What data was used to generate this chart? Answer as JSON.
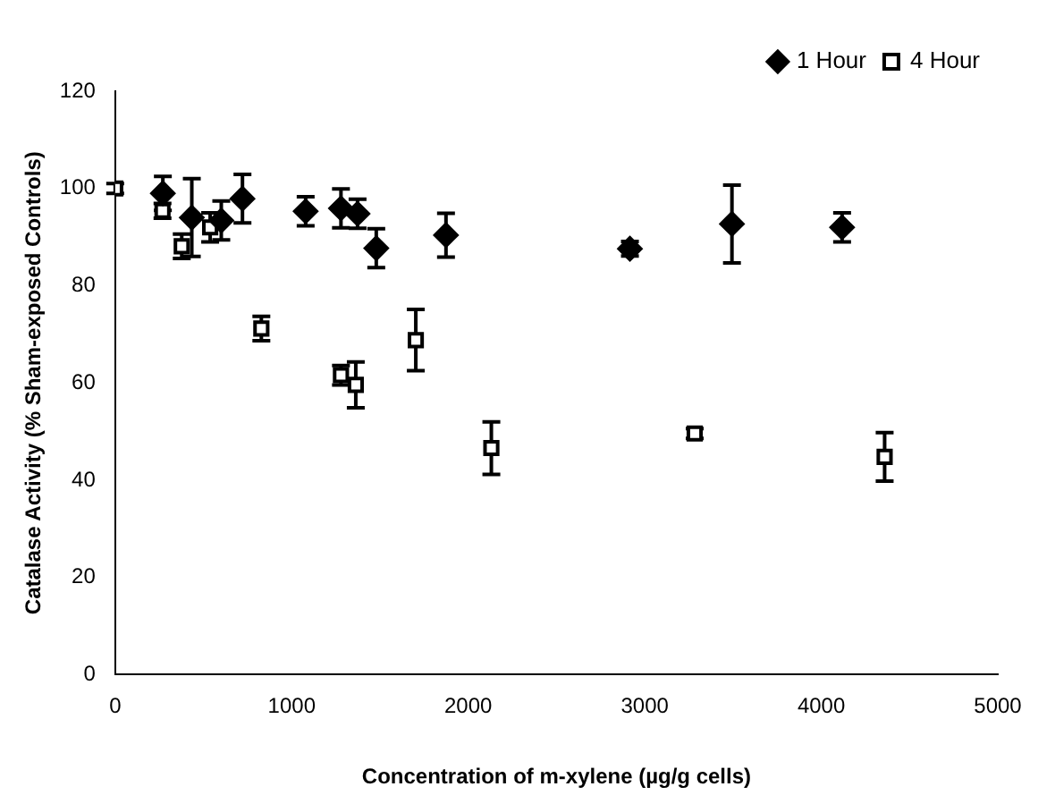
{
  "chart_data": {
    "type": "scatter",
    "xlabel": "Concentration of m-xylene (µg/g cells)",
    "ylabel": "Catalase Activity (% Sham-exposed Controls)",
    "xlim": [
      0,
      5000
    ],
    "xticks": [
      0,
      1000,
      2000,
      3000,
      4000,
      5000
    ],
    "ylim": [
      0,
      120
    ],
    "yticks": [
      0,
      20,
      40,
      60,
      80,
      100,
      120
    ],
    "grid": false,
    "legend": "top right",
    "series": [
      {
        "name": "1 Hour",
        "color": "#000000",
        "marker": "diamond",
        "x": [
          270,
          434,
          601,
          721,
          1079,
          1279,
          1373,
          1479,
          1874,
          2916,
          3494,
          4118
        ],
        "values": [
          99,
          94,
          93.4,
          97.9,
          95.3,
          95.9,
          94.8,
          87.7,
          90.4,
          87.6,
          92.7,
          92
        ],
        "errors": [
          3.5,
          8,
          4,
          5,
          3,
          4,
          3,
          4,
          4.5,
          1.5,
          8,
          3
        ]
      },
      {
        "name": "4 Hour",
        "color": "#000000",
        "marker": "square",
        "x": [
          0,
          268,
          377,
          538,
          828,
          1279,
          1363,
          1703,
          2131,
          3283,
          4359
        ],
        "values": [
          100,
          95.4,
          88.1,
          92,
          71.2,
          61.6,
          59.6,
          68.8,
          46.6,
          49.6,
          44.8
        ],
        "errors": [
          1,
          1.5,
          2.5,
          3,
          2.5,
          2,
          4.7,
          6.3,
          5.4,
          1,
          5
        ]
      }
    ]
  }
}
